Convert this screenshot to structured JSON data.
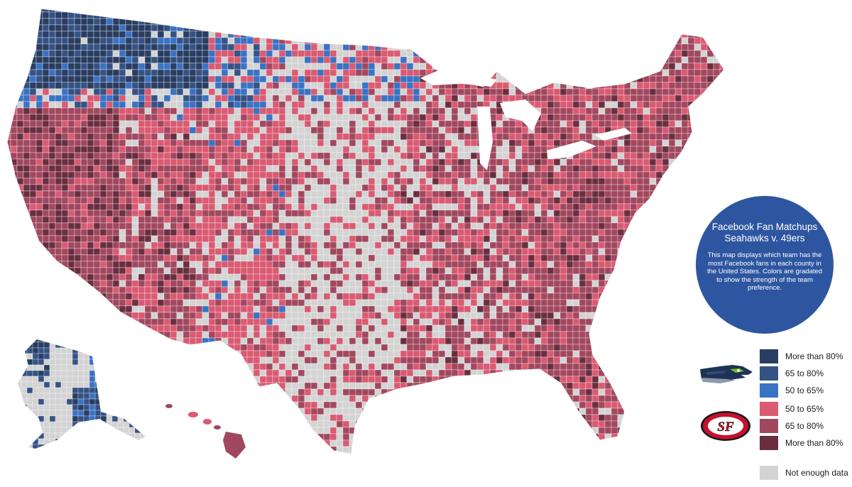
{
  "map": {
    "colors": {
      "seahawks_80": "#283d61",
      "seahawks_65": "#355285",
      "seahawks_50": "#3a72c4",
      "niners_50": "#d95a72",
      "niners_65": "#a1475e",
      "niners_80": "#6a2e3f",
      "no_data": "#d3d3d3",
      "border": "#ffffff"
    },
    "regions": [
      "Washington",
      "Oregon",
      "Idaho",
      "Montana",
      "California",
      "Nevada",
      "Utah",
      "Arizona",
      "Wyoming",
      "Colorado",
      "New Mexico",
      "Great Plains",
      "Texas",
      "Midwest",
      "Southeast",
      "Northeast",
      "Florida",
      "Alaska",
      "Hawaii"
    ]
  },
  "info": {
    "title": "Facebook Fan Matchups",
    "subtitle": "Seahawks v. 49ers",
    "description": "This map displays which team has the most Facebook fans in each county in the United States. Colors are gradated to show the strength of the team preference."
  },
  "legend": {
    "seahawks": [
      {
        "label": "More than 80%",
        "color": "#283d61"
      },
      {
        "label": "65 to 80%",
        "color": "#355285"
      },
      {
        "label": "50 to 65%",
        "color": "#3a72c4"
      }
    ],
    "niners": [
      {
        "label": "50 to 65%",
        "color": "#d95a72"
      },
      {
        "label": "65 to 80%",
        "color": "#a1475e"
      },
      {
        "label": "More than 80%",
        "color": "#6a2e3f"
      }
    ],
    "no_data": {
      "label": "Not enough data",
      "color": "#d3d3d3"
    }
  },
  "logos": {
    "seahawks_icon": "seahawk-head-icon",
    "niners_icon": "sf-oval-icon",
    "niners_colors": {
      "ring": "#c8102e",
      "inner": "#ffffff",
      "letters": "#c8102e"
    }
  }
}
